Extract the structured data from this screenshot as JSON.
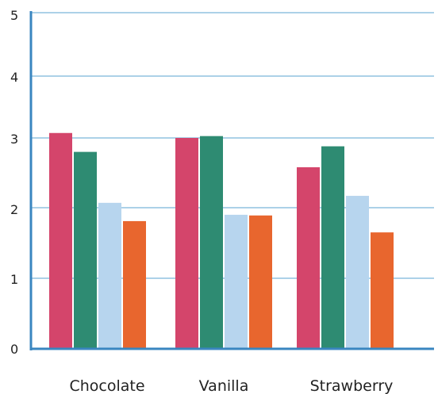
{
  "chart_data": {
    "type": "bar",
    "title": "",
    "xlabel": "",
    "ylabel": "",
    "categories": [
      "Chocolate",
      "Vanilla",
      "Strawberry"
    ],
    "series": [
      {
        "values": [
          3.08,
          3.0,
          2.58
        ],
        "color": "#d4456b"
      },
      {
        "values": [
          2.8,
          3.03,
          2.88
        ],
        "color": "#2e8b72"
      },
      {
        "values": [
          2.07,
          1.9,
          2.17
        ],
        "color": "#b7d5ee"
      },
      {
        "values": [
          1.81,
          1.89,
          1.65
        ],
        "color": "#e8662e"
      }
    ],
    "ylim": [
      0,
      5
    ],
    "yticks": [
      "0",
      "1",
      "2",
      "3",
      "4",
      "5"
    ],
    "grid": true,
    "legend": "none",
    "colors": {
      "axis": "#3a86c0",
      "grid": "#5aa3d0"
    }
  }
}
